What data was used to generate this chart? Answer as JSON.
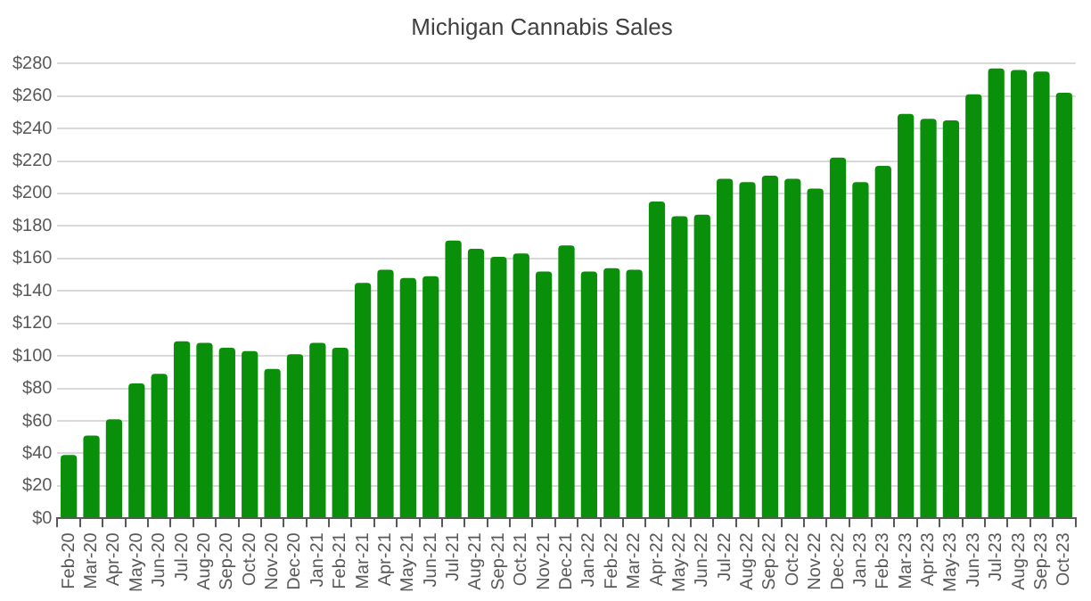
{
  "chart_data": {
    "type": "bar",
    "title": "Michigan Cannabis Sales",
    "categories": [
      "Feb-20",
      "Mar-20",
      "Apr-20",
      "May-20",
      "Jun-20",
      "Jul-20",
      "Aug-20",
      "Sep-20",
      "Oct-20",
      "Nov-20",
      "Dec-20",
      "Jan-21",
      "Feb-21",
      "Mar-21",
      "Apr-21",
      "May-21",
      "Jun-21",
      "Jul-21",
      "Aug-21",
      "Sep-21",
      "Oct-21",
      "Nov-21",
      "Dec-21",
      "Jan-22",
      "Feb-22",
      "Mar-22",
      "Apr-22",
      "May-22",
      "Jun-22",
      "Jul-22",
      "Aug-22",
      "Sep-22",
      "Oct-22",
      "Nov-22",
      "Dec-22",
      "Jan-23",
      "Feb-23",
      "Mar-23",
      "Apr-23",
      "May-23",
      "Jun-23",
      "Jul-23",
      "Aug-23",
      "Sep-23",
      "Oct-23"
    ],
    "values": [
      39,
      51,
      61,
      83,
      89,
      109,
      108,
      105,
      103,
      92,
      101,
      108,
      105,
      145,
      153,
      148,
      149,
      171,
      166,
      161,
      163,
      152,
      168,
      152,
      154,
      153,
      195,
      186,
      187,
      209,
      207,
      211,
      209,
      203,
      222,
      207,
      217,
      249,
      246,
      245,
      261,
      277,
      276,
      275,
      262
    ],
    "color": "#0a8f0a",
    "ylim": [
      0,
      280
    ],
    "yticks": [
      {
        "value": 0,
        "label": "$0"
      },
      {
        "value": 20,
        "label": "$20"
      },
      {
        "value": 40,
        "label": "$40"
      },
      {
        "value": 60,
        "label": "$60"
      },
      {
        "value": 80,
        "label": "$80"
      },
      {
        "value": 100,
        "label": "$100"
      },
      {
        "value": 120,
        "label": "$120"
      },
      {
        "value": 140,
        "label": "$140"
      },
      {
        "value": 160,
        "label": "$160"
      },
      {
        "value": 180,
        "label": "$180"
      },
      {
        "value": 200,
        "label": "$200"
      },
      {
        "value": 220,
        "label": "$220"
      },
      {
        "value": 240,
        "label": "$240"
      },
      {
        "value": 260,
        "label": "$260"
      },
      {
        "value": 280,
        "label": "$280"
      }
    ],
    "grid": "y"
  }
}
